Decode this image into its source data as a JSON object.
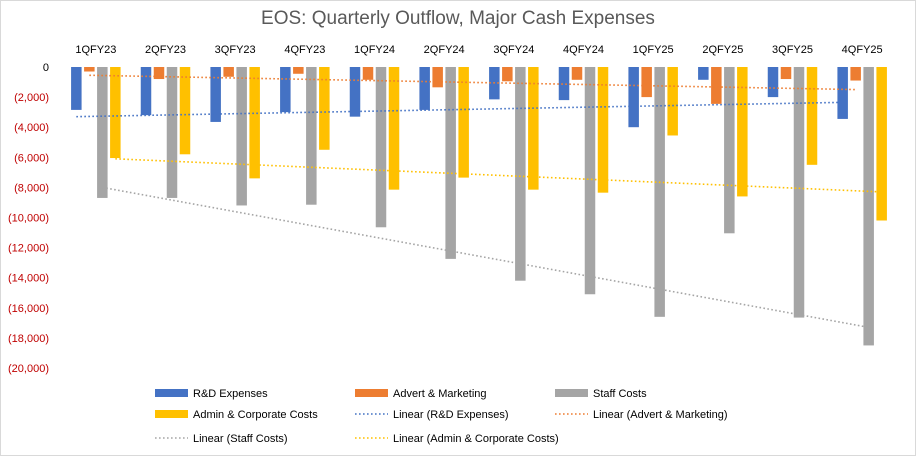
{
  "chart_data": {
    "type": "bar",
    "title": "EOS: Quarterly Outflow, Major Cash Expenses",
    "xlabel": "",
    "ylabel": "",
    "ylim": [
      -20000,
      0
    ],
    "y_ticks": [
      "0",
      "(2,000)",
      "(4,000)",
      "(6,000)",
      "(8,000)",
      "(10,000)",
      "(12,000)",
      "(14,000)",
      "(16,000)",
      "(18,000)",
      "(20,000)"
    ],
    "y_tick_values": [
      0,
      -2000,
      -4000,
      -6000,
      -8000,
      -10000,
      -12000,
      -14000,
      -16000,
      -18000,
      -20000
    ],
    "x_axis_position": "top",
    "grid": false,
    "categories": [
      "1QFY23",
      "2QFY23",
      "3QFY23",
      "4QFY23",
      "1QFY24",
      "2QFY24",
      "3QFY24",
      "4QFY24",
      "1QFY25",
      "2QFY25",
      "3QFY25",
      "4QFY25"
    ],
    "series": [
      {
        "name": "R&D Expenses",
        "color": "#4472c4",
        "values": [
          -2850,
          -3200,
          -3650,
          -3000,
          -3300,
          -2850,
          -2150,
          -2200,
          -4000,
          -850,
          -2000,
          -3450
        ]
      },
      {
        "name": "Advert & Marketing",
        "color": "#ed7d31",
        "values": [
          -300,
          -800,
          -650,
          -450,
          -850,
          -1350,
          -950,
          -850,
          -2000,
          -2450,
          -800,
          -900
        ]
      },
      {
        "name": "Staff Costs",
        "color": "#a5a5a5",
        "values": [
          -8700,
          -8700,
          -9200,
          -9150,
          -10650,
          -12750,
          -14200,
          -15100,
          -16600,
          -11050,
          -16650,
          -18500
        ]
      },
      {
        "name": "Admin & Corporate Costs",
        "color": "#ffc000",
        "values": [
          -6050,
          -5800,
          -7400,
          -5500,
          -8150,
          -7350,
          -8150,
          -8350,
          -4550,
          -8600,
          -6500,
          -10200
        ]
      }
    ],
    "trendlines": [
      {
        "name": "Linear (R&D Expenses)",
        "color": "#4472c4",
        "start": -3300,
        "end": -2350
      },
      {
        "name": "Linear (Advert & Marketing)",
        "color": "#ed7d31",
        "start": -550,
        "end": -1500
      },
      {
        "name": "Linear (Staff Costs)",
        "color": "#a5a5a5",
        "start": -8000,
        "end": -17300
      },
      {
        "name": "Linear (Admin & Corporate Costs)",
        "color": "#ffc000",
        "start": -6100,
        "end": -8300
      }
    ],
    "legend_position": "bottom",
    "y_tick_color": "#c00000"
  }
}
